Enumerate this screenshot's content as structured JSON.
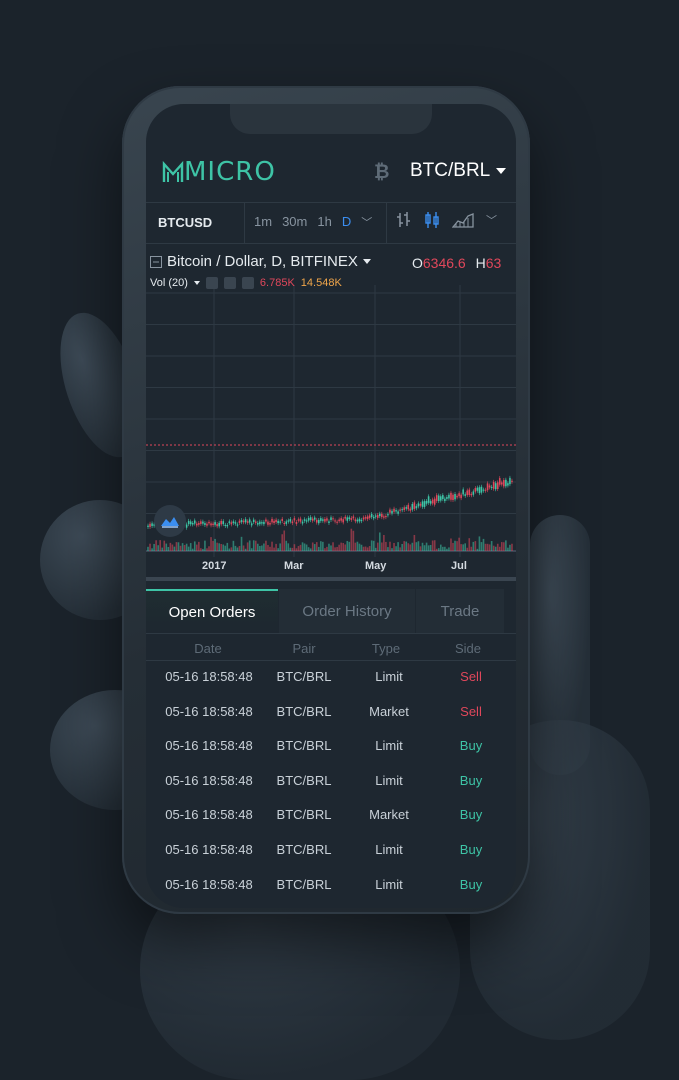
{
  "app": {
    "logo_text": "MICRO",
    "logo_mark": "M",
    "currency_icon": "bitcoin-icon",
    "pair": "BTC/BRL"
  },
  "toolbar": {
    "symbol": "BTCUSD",
    "intervals": [
      "1m",
      "30m",
      "1h",
      "D"
    ],
    "active_interval": "D"
  },
  "chart": {
    "title": "Bitcoin / Dollar, D, BITFINEX",
    "open_label": "O",
    "open_value": "6346.6",
    "high_label": "H",
    "high_value": "63",
    "volume_label": "Vol (20)",
    "volume_value_1": "6.785K",
    "volume_value_2": "14.548K",
    "x_labels": [
      "2017",
      "Mar",
      "May",
      "Jul"
    ],
    "colors": {
      "up": "#3ec4a6",
      "down": "#e0475b"
    }
  },
  "tabs": [
    {
      "label": "Open Orders",
      "active": true
    },
    {
      "label": "Order History",
      "active": false
    },
    {
      "label": "Trade",
      "active": false
    }
  ],
  "orders": {
    "columns": [
      "Date",
      "Pair",
      "Type",
      "Side"
    ],
    "rows": [
      {
        "date": "05-16 18:58:48",
        "pair": "BTC/BRL",
        "type": "Limit",
        "side": "Sell"
      },
      {
        "date": "05-16 18:58:48",
        "pair": "BTC/BRL",
        "type": "Market",
        "side": "Sell"
      },
      {
        "date": "05-16 18:58:48",
        "pair": "BTC/BRL",
        "type": "Limit",
        "side": "Buy"
      },
      {
        "date": "05-16 18:58:48",
        "pair": "BTC/BRL",
        "type": "Limit",
        "side": "Buy"
      },
      {
        "date": "05-16 18:58:48",
        "pair": "BTC/BRL",
        "type": "Market",
        "side": "Buy"
      },
      {
        "date": "05-16 18:58:48",
        "pair": "BTC/BRL",
        "type": "Limit",
        "side": "Buy"
      },
      {
        "date": "05-16 18:58:48",
        "pair": "BTC/BRL",
        "type": "Limit",
        "side": "Buy"
      }
    ]
  }
}
